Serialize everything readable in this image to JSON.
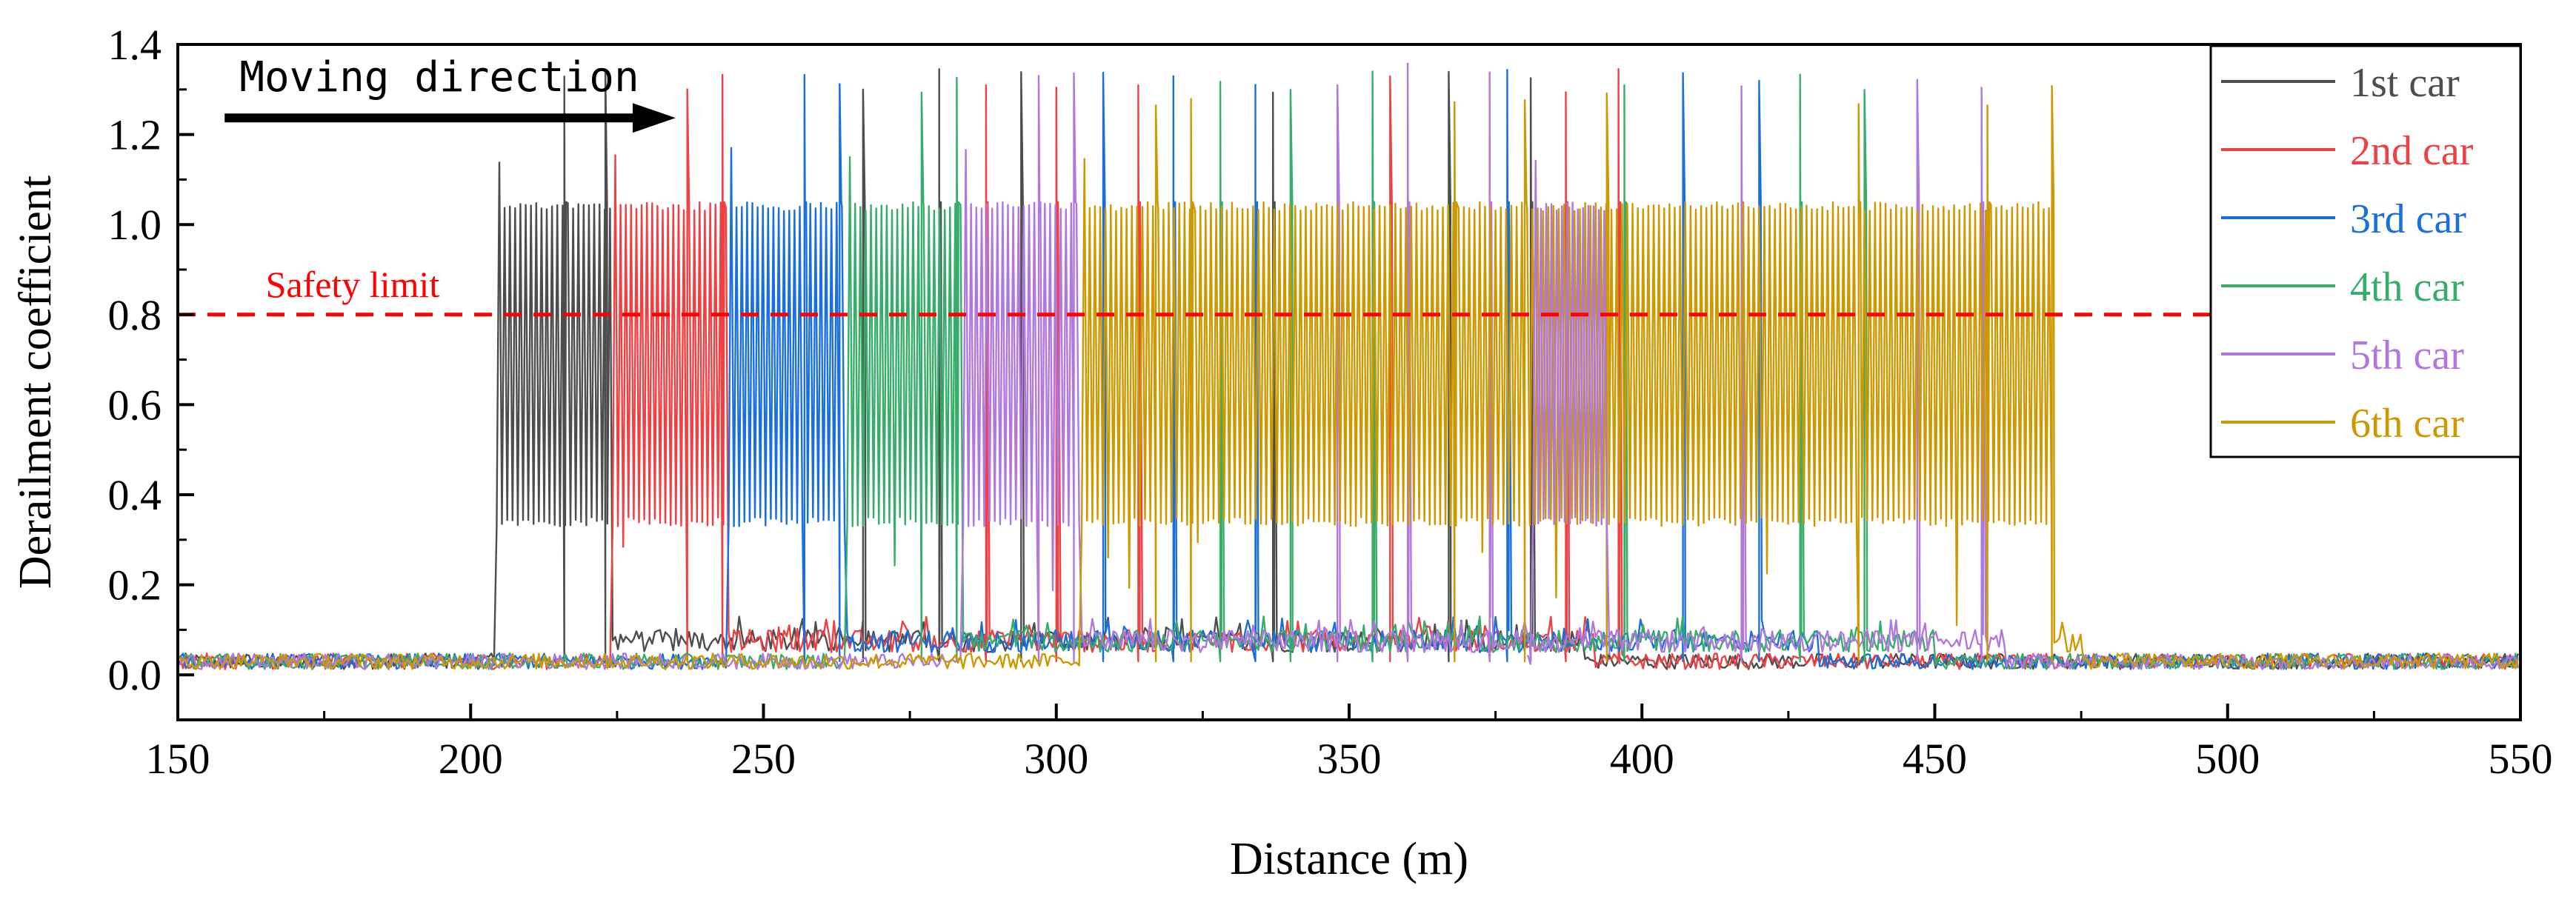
{
  "chart_data": {
    "type": "line",
    "xlabel": "Distance (m)",
    "ylabel": "Derailment coefficient",
    "xlim": [
      150,
      550
    ],
    "ylim": [
      -0.1,
      1.4
    ],
    "xticks": [
      150,
      200,
      250,
      300,
      350,
      400,
      450,
      500,
      550
    ],
    "yticks": [
      0.0,
      0.2,
      0.4,
      0.6,
      0.8,
      1.0,
      1.2,
      1.4
    ],
    "xtick_labels": [
      "150",
      "200",
      "250",
      "300",
      "350",
      "400",
      "450",
      "500",
      "550"
    ],
    "ytick_labels": [
      "0.0",
      "0.2",
      "0.4",
      "0.6",
      "0.8",
      "1.0",
      "1.2",
      "1.4"
    ],
    "baseline": 0.03,
    "oscillation_range": [
      0.33,
      1.05
    ],
    "series": [
      {
        "name": "1st car",
        "color": "#4d4d4d",
        "start": 204,
        "end": 224,
        "tail_end": 390,
        "peak": 1.35,
        "lead_peak": 1.21,
        "spikes": [
          216,
          223,
          267,
          280,
          294,
          337,
          367,
          381
        ]
      },
      {
        "name": "2nd car",
        "color": "#ef4044",
        "start": 224,
        "end": 244,
        "tail_end": 392,
        "peak": 1.35,
        "lead_peak": 1.21,
        "spikes": [
          237,
          243,
          288,
          300,
          314,
          357,
          387,
          396
        ]
      },
      {
        "name": "3rd car",
        "color": "#1a6fdf",
        "start": 244,
        "end": 264,
        "tail_end": 430,
        "peak": 1.35,
        "lead_peak": 1.21,
        "spikes": [
          257,
          263,
          308,
          320,
          334,
          377,
          407,
          420
        ]
      },
      {
        "name": "4th car",
        "color": "#37ad6b",
        "start": 264,
        "end": 284,
        "tail_end": 450,
        "peak": 1.35,
        "lead_peak": 1.21,
        "spikes": [
          277,
          283,
          328,
          340,
          354,
          397,
          427,
          438
        ]
      },
      {
        "name": "5th car",
        "color": "#b177de",
        "start": 284,
        "end": 304,
        "tail_end": 462,
        "peak": 1.36,
        "lead_peak": 1.21,
        "spikes": [
          297,
          303,
          348,
          360,
          374,
          417,
          447,
          458
        ]
      },
      {
        "name": "6th car",
        "color": "#cc9900",
        "start": 304,
        "end": 470,
        "tail_end": 475,
        "peak": 1.32,
        "lead_peak": 1.21,
        "spikes": [
          317,
          323,
          368,
          380,
          394,
          437,
          459,
          470
        ]
      }
    ],
    "overlays": [
      {
        "series": "5th car",
        "start": 381,
        "end": 394
      }
    ],
    "reference_lines": [
      {
        "label": "Safety limit",
        "y": 0.8,
        "color": "#ff0000",
        "style": "dashed"
      }
    ],
    "annotations": [
      {
        "text": "Moving direction",
        "arrow": "right",
        "x_from": 158,
        "x_to": 235,
        "y": 1.25
      }
    ],
    "legend_position": "top-right"
  }
}
